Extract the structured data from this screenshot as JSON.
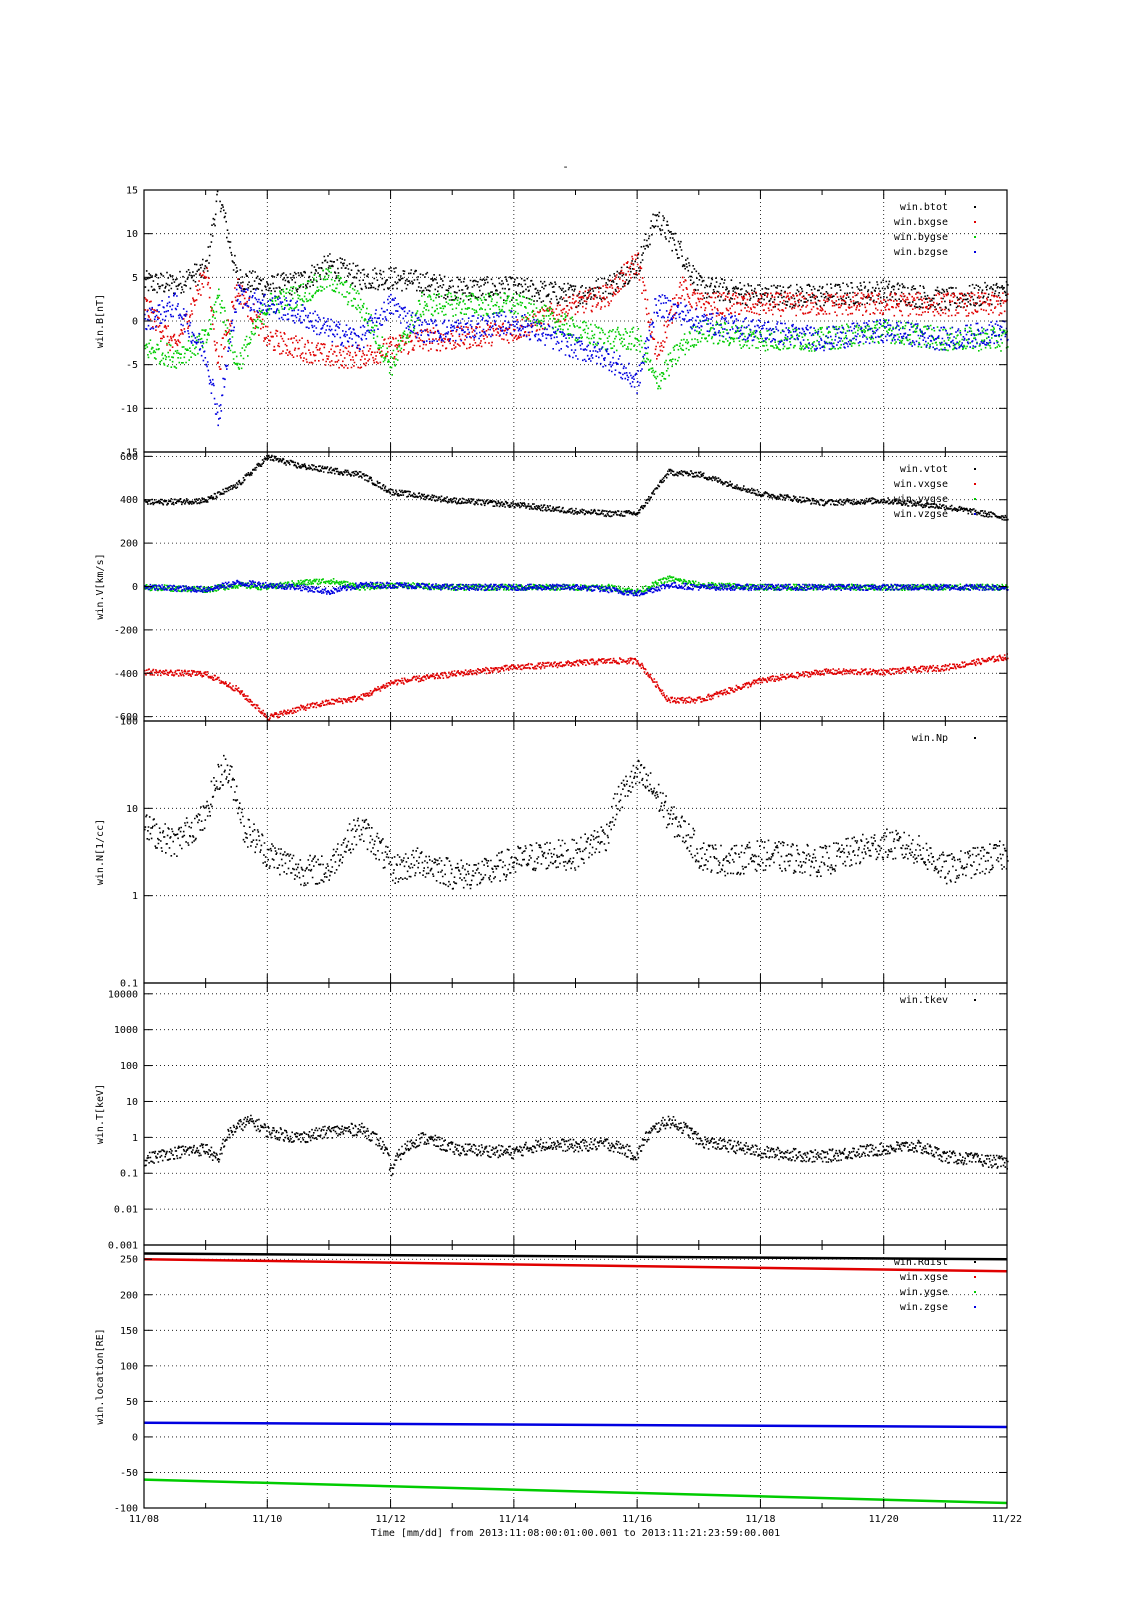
{
  "page": {
    "title": "-"
  },
  "chart_data": [
    {
      "type": "scatter",
      "ylabel": "win.B[nT]",
      "ylim": [
        -15,
        15
      ],
      "yscale": "linear",
      "yticks": [
        15,
        10,
        5,
        0,
        -5,
        -10,
        -15
      ],
      "grid": true,
      "legend_position": "top-right",
      "series": [
        {
          "name": "win.btot",
          "color": "#000000",
          "x": [
            "11/08",
            "11/08.5",
            "11/09",
            "11/09.2",
            "11/09.5",
            "11/10",
            "11/10.5",
            "11/11",
            "11/11.5",
            "11/12",
            "11/12.5",
            "11/13",
            "11/14",
            "11/15",
            "11/15.5",
            "11/16",
            "11/16.3",
            "11/16.7",
            "11/17",
            "11/18",
            "11/19",
            "11/20",
            "11/21",
            "11/22"
          ],
          "values": [
            4.5,
            4.3,
            6,
            15,
            5,
            4,
            4.5,
            6.5,
            5,
            5,
            4.5,
            3.8,
            3.8,
            3,
            4,
            6.5,
            12,
            8,
            4,
            3,
            3,
            3.5,
            2.5,
            3.5
          ]
        },
        {
          "name": "win.bxgse",
          "color": "#e00000",
          "x": [
            "11/08",
            "11/08.5",
            "11/09",
            "11/09.2",
            "11/09.5",
            "11/10",
            "11/10.5",
            "11/11",
            "11/11.5",
            "11/12",
            "11/12.5",
            "11/13",
            "11/14",
            "11/15",
            "11/15.5",
            "11/16",
            "11/16.3",
            "11/16.7",
            "11/17",
            "11/18",
            "11/19",
            "11/20",
            "11/21",
            "11/22"
          ],
          "values": [
            2,
            -3,
            6,
            -5,
            4,
            -2,
            -3,
            -4,
            -4,
            -3,
            -2,
            -2,
            -1,
            2,
            3,
            7,
            -4,
            4,
            2,
            2,
            2,
            2,
            2,
            2
          ]
        },
        {
          "name": "win.bygse",
          "color": "#00cc00",
          "x": [
            "11/08",
            "11/08.5",
            "11/09",
            "11/09.2",
            "11/09.5",
            "11/10",
            "11/10.5",
            "11/11",
            "11/11.5",
            "11/12",
            "11/12.5",
            "11/13",
            "11/14",
            "11/15",
            "11/15.5",
            "11/16",
            "11/16.3",
            "11/16.7",
            "11/17",
            "11/18",
            "11/19",
            "11/20",
            "11/21",
            "11/22"
          ],
          "values": [
            -3,
            -4,
            -2,
            3,
            -5,
            2,
            3,
            5,
            2,
            -5,
            2,
            2,
            2,
            -1,
            -2,
            -2,
            -7,
            -3,
            -1,
            -2,
            -2,
            -1,
            -2,
            -2
          ]
        },
        {
          "name": "win.bzgse",
          "color": "#0000e0",
          "x": [
            "11/08",
            "11/08.5",
            "11/09",
            "11/09.2",
            "11/09.5",
            "11/10",
            "11/10.5",
            "11/11",
            "11/11.5",
            "11/12",
            "11/12.5",
            "11/13",
            "11/14",
            "11/15",
            "11/15.5",
            "11/16",
            "11/16.3",
            "11/16.7",
            "11/17",
            "11/18",
            "11/19",
            "11/20",
            "11/21",
            "11/22"
          ],
          "values": [
            0,
            2,
            -4,
            -11,
            3,
            2,
            1,
            -1,
            -2,
            2,
            -1,
            -1,
            0,
            -3,
            -4,
            -7,
            2,
            1,
            0,
            -1,
            -2,
            -1,
            -2,
            -1
          ]
        }
      ]
    },
    {
      "type": "scatter",
      "ylabel": "win.V[km/s]",
      "ylim": [
        -620,
        620
      ],
      "yscale": "linear",
      "yticks": [
        600,
        400,
        200,
        0,
        -200,
        -400,
        -600
      ],
      "grid": true,
      "legend_position": "top-right",
      "series": [
        {
          "name": "win.vtot",
          "color": "#000000",
          "x": [
            "11/08",
            "11/09",
            "11/09.5",
            "11/10",
            "11/10.5",
            "11/11",
            "11/11.5",
            "11/12",
            "11/13",
            "11/14",
            "11/15",
            "11/15.5",
            "11/16",
            "11/16.5",
            "11/17",
            "11/18",
            "11/19",
            "11/20",
            "11/21",
            "11/22"
          ],
          "values": [
            390,
            400,
            470,
            600,
            560,
            540,
            520,
            440,
            400,
            380,
            350,
            340,
            340,
            530,
            520,
            430,
            390,
            400,
            370,
            320
          ]
        },
        {
          "name": "win.vxgse",
          "color": "#e00000",
          "x": [
            "11/08",
            "11/09",
            "11/09.5",
            "11/10",
            "11/10.5",
            "11/11",
            "11/11.5",
            "11/12",
            "11/13",
            "11/14",
            "11/15",
            "11/15.5",
            "11/16",
            "11/16.5",
            "11/17",
            "11/18",
            "11/19",
            "11/20",
            "11/21",
            "11/22"
          ],
          "values": [
            -390,
            -400,
            -470,
            -600,
            -560,
            -530,
            -510,
            -440,
            -400,
            -370,
            -350,
            -340,
            -340,
            -520,
            -520,
            -430,
            -390,
            -390,
            -370,
            -320
          ]
        },
        {
          "name": "win.vygse",
          "color": "#00cc00",
          "x": [
            "11/08",
            "11/09",
            "11/09.5",
            "11/10",
            "11/10.5",
            "11/11",
            "11/11.5",
            "11/12",
            "11/13",
            "11/14",
            "11/15",
            "11/15.5",
            "11/16",
            "11/16.5",
            "11/17",
            "11/18",
            "11/19",
            "11/20",
            "11/21",
            "11/22"
          ],
          "values": [
            0,
            -10,
            10,
            0,
            20,
            30,
            0,
            10,
            0,
            0,
            0,
            0,
            -20,
            40,
            10,
            0,
            0,
            0,
            0,
            0
          ]
        },
        {
          "name": "win.vzgse",
          "color": "#0000e0",
          "x": [
            "11/08",
            "11/09",
            "11/09.5",
            "11/10",
            "11/10.5",
            "11/11",
            "11/11.5",
            "11/12",
            "11/13",
            "11/14",
            "11/15",
            "11/15.5",
            "11/16",
            "11/16.5",
            "11/17",
            "11/18",
            "11/19",
            "11/20",
            "11/21",
            "11/22"
          ],
          "values": [
            0,
            -10,
            20,
            10,
            0,
            -20,
            10,
            10,
            0,
            0,
            0,
            -10,
            -30,
            10,
            0,
            0,
            0,
            0,
            0,
            0
          ]
        }
      ]
    },
    {
      "type": "scatter",
      "ylabel": "win.N[1/cc]",
      "ylim": [
        0.1,
        100
      ],
      "yscale": "log",
      "yticks": [
        100,
        10,
        1,
        0.1
      ],
      "grid": true,
      "legend_position": "top-right",
      "series": [
        {
          "name": "win.Np",
          "color": "#000000",
          "x": [
            "11/08",
            "11/08.5",
            "11/09",
            "11/09.3",
            "11/09.6",
            "11/10",
            "11/10.5",
            "11/11",
            "11/11.5",
            "11/12",
            "11/12.5",
            "11/13",
            "11/13.5",
            "11/14",
            "11/14.5",
            "11/15",
            "11/15.5",
            "11/16",
            "11/16.5",
            "11/17",
            "11/17.5",
            "11/18",
            "11/19",
            "11/20",
            "11/20.5",
            "11/21",
            "11/21.5",
            "11/22"
          ],
          "values": [
            6,
            4,
            8,
            30,
            6,
            3,
            2,
            2,
            6,
            2,
            2.5,
            1.8,
            1.8,
            2.5,
            3,
            3,
            5,
            25,
            8,
            3,
            2.5,
            3,
            2.5,
            4,
            3.5,
            2,
            2.5,
            3
          ]
        }
      ]
    },
    {
      "type": "scatter",
      "ylabel": "win.T[keV]",
      "ylim": [
        0.001,
        20000
      ],
      "yscale": "log",
      "yticks": [
        10000,
        1000,
        100,
        10,
        1,
        0.1,
        0.01,
        0.001
      ],
      "grid": true,
      "legend_position": "top-right",
      "series": [
        {
          "name": "win.tkev",
          "color": "#000000",
          "x": [
            "11/08",
            "11/08.5",
            "11/09",
            "11/09.2",
            "11/09.4",
            "11/09.7",
            "11/10",
            "11/10.5",
            "11/11",
            "11/11.5",
            "11/12",
            "11/12.5",
            "11/13",
            "11/14",
            "11/14.5",
            "11/15",
            "11/15.5",
            "11/16",
            "11/16.5",
            "11/17",
            "11/18",
            "11/19",
            "11/20",
            "11/20.5",
            "11/21",
            "11/22"
          ],
          "values": [
            0.25,
            0.4,
            0.5,
            0.2,
            1.5,
            3,
            1.5,
            1,
            1.5,
            1.8,
            0.1,
            1,
            0.5,
            0.4,
            0.7,
            0.6,
            0.7,
            0.3,
            3,
            0.8,
            0.4,
            0.3,
            0.5,
            0.6,
            0.3,
            0.2
          ]
        }
      ]
    },
    {
      "type": "line",
      "ylabel": "win.location[RE]",
      "ylim": [
        -100,
        270
      ],
      "yscale": "linear",
      "yticks": [
        250,
        200,
        150,
        100,
        50,
        0,
        -50,
        -100
      ],
      "grid": true,
      "legend_position": "top-right",
      "series": [
        {
          "name": "win.Rdist",
          "color": "#000000",
          "x": [
            "11/08",
            "11/22"
          ],
          "values": [
            258,
            250
          ]
        },
        {
          "name": "win.xgse",
          "color": "#e00000",
          "x": [
            "11/08",
            "11/22"
          ],
          "values": [
            250,
            233
          ]
        },
        {
          "name": "win.ygse",
          "color": "#00cc00",
          "x": [
            "11/08",
            "11/22"
          ],
          "values": [
            -60,
            -93
          ]
        },
        {
          "name": "win.zgse",
          "color": "#0000e0",
          "x": [
            "11/08",
            "11/22"
          ],
          "values": [
            20,
            14
          ]
        }
      ]
    }
  ],
  "x_axis": {
    "ticks": [
      "11/08",
      "11/10",
      "11/12",
      "11/14",
      "11/16",
      "11/18",
      "11/20",
      "11/22"
    ],
    "label": "Time [mm/dd]  from 2013:11:08:00:01:00.001  to  2013:11:21:23:59:00.001"
  }
}
